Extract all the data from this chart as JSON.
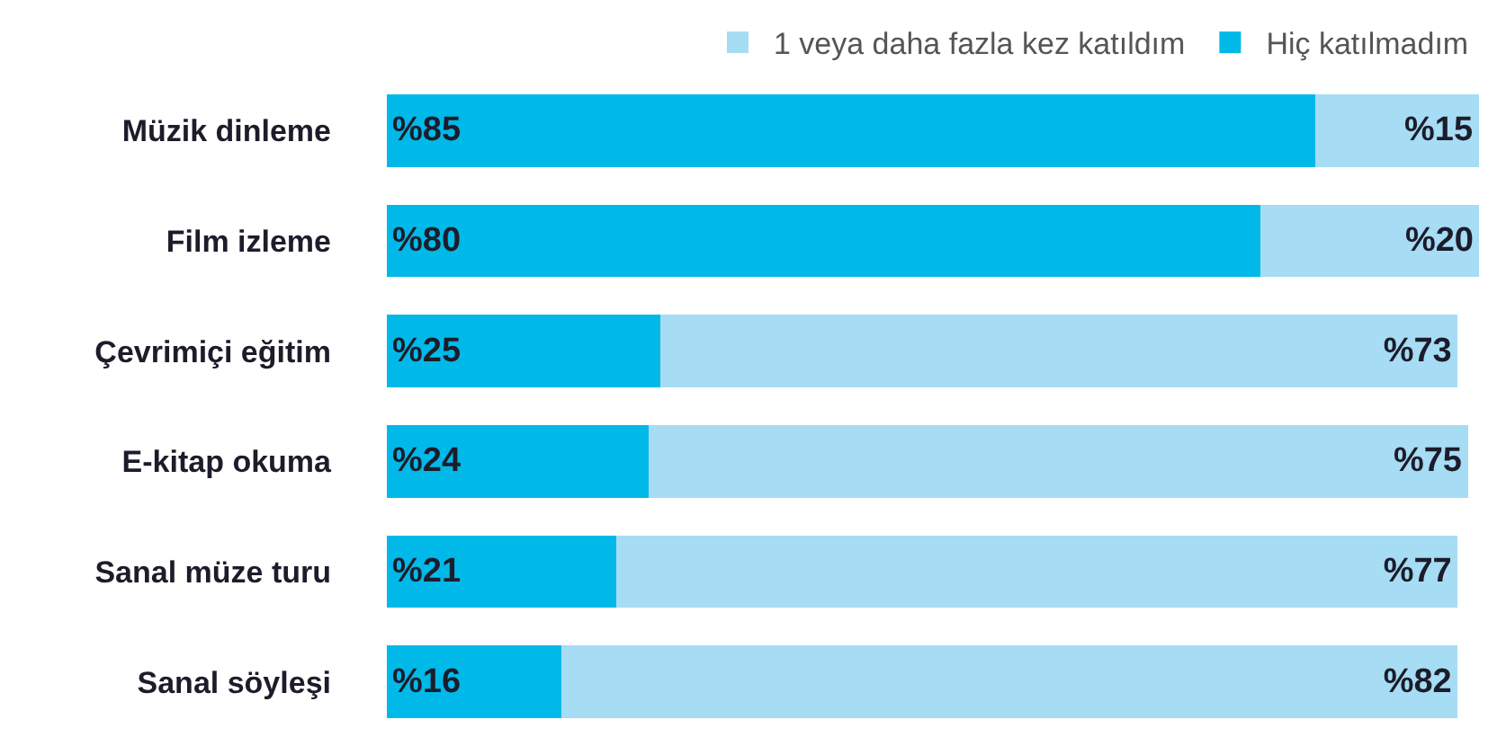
{
  "chart_data": {
    "type": "bar",
    "orientation": "horizontal",
    "stacked": true,
    "categories": [
      "Müzik dinleme",
      "Film izleme",
      "Çevrimiçi eğitim",
      "E-kitap okuma",
      "Sanal müze turu",
      "Sanal söyleşi"
    ],
    "series": [
      {
        "name": "Hiç katılmadım",
        "color": "#00b9e8",
        "values": [
          85,
          80,
          25,
          24,
          21,
          16
        ],
        "value_labels": [
          "%85",
          "%80",
          "%25",
          "%24",
          "%21",
          "%16"
        ]
      },
      {
        "name": "1 veya daha fazla kez katıldım",
        "color": "#a6dcf4",
        "values": [
          15,
          20,
          73,
          75,
          77,
          82
        ],
        "value_labels": [
          "%15",
          "%20",
          "%73",
          "%75",
          "%77",
          "%82"
        ]
      }
    ],
    "xlim": [
      0,
      100
    ],
    "tick_labels": "y",
    "legend": "top right"
  }
}
